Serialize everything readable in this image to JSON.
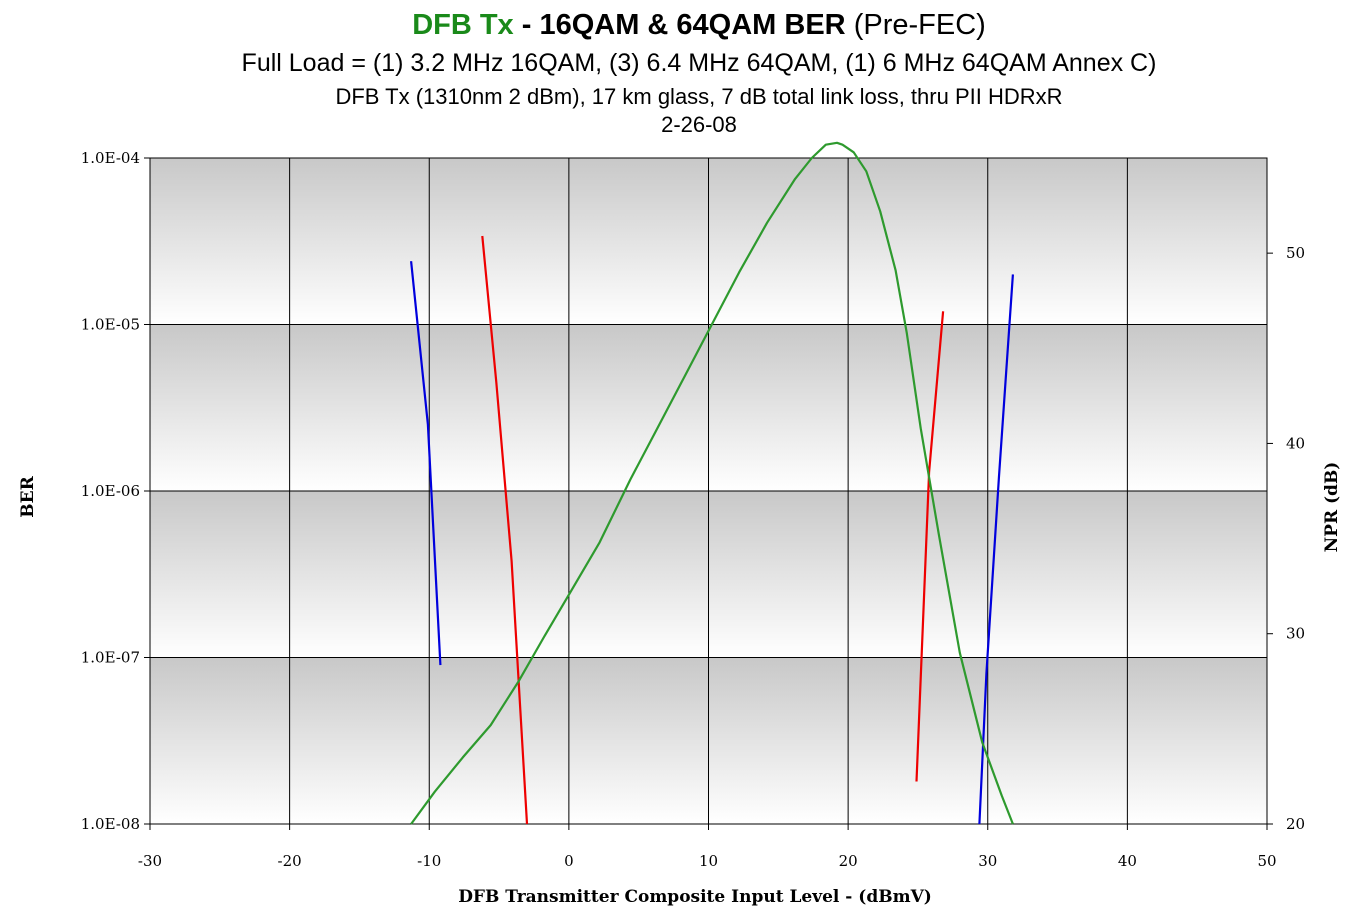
{
  "title": {
    "part_green": "DFB Tx",
    "part_bold": " - 16QAM & 64QAM BER",
    "part_plain": " (Pre-FEC)",
    "line2": "Full Load = (1) 3.2 MHz 16QAM, (3) 6.4 MHz 64QAM, (1) 6 MHz 64QAM Annex C)",
    "line3": "DFB Tx (1310nm 2 dBm), 17 km glass, 7 dB total link loss, thru PII HDRxR",
    "line4": "2-26-08"
  },
  "chart_data": {
    "type": "line",
    "xlabel": "DFB Transmitter Composite Input Level - (dBmV)",
    "ylabel": "BER",
    "y2label": "NPR (dB)",
    "xlim": [
      -30,
      50
    ],
    "ylim_log10": [
      -8,
      -4
    ],
    "y2lim": [
      20,
      55
    ],
    "x_ticks": [
      "-30",
      "-20",
      "-10",
      "0",
      "10",
      "20",
      "30",
      "40",
      "50"
    ],
    "y_ticks": [
      "1.0E-04",
      "1.0E-05",
      "1.0E-06",
      "1.0E-07",
      "1.0E-08"
    ],
    "y2_ticks": [
      "50",
      "40",
      "30",
      "20"
    ],
    "grid": true,
    "colors": {
      "blue": "#0000dd",
      "red": "#ee0000",
      "green": "#2e9a2e",
      "plot_bg_top": "#c8c8c8",
      "plot_bg_mid": "#ffffff",
      "title_green": "#1a8a1a"
    },
    "series": [
      {
        "color": "blue",
        "axis": "y",
        "x": [
          -11.3,
          -10.1,
          -9.2
        ],
        "y": [
          2.4e-05,
          2.5e-06,
          9e-08
        ]
      },
      {
        "color": "red",
        "axis": "y",
        "x": [
          -6.2,
          -5.2,
          -4.1,
          -3.0
        ],
        "y": [
          3.4e-05,
          4.5e-06,
          3.8e-07,
          1e-08
        ]
      },
      {
        "color": "red",
        "axis": "y",
        "x": [
          24.9,
          25.8,
          26.8
        ],
        "y": [
          1.8e-08,
          1.3e-06,
          1.2e-05
        ]
      },
      {
        "color": "blue",
        "axis": "y",
        "x": [
          29.4,
          29.9,
          30.8,
          31.8
        ],
        "y": [
          1e-08,
          8e-08,
          1.2e-06,
          2e-05
        ]
      },
      {
        "color": "green",
        "axis": "y2",
        "x": [
          -11.3,
          -9.6,
          -7.6,
          -5.6,
          -3.6,
          -1.8,
          0.2,
          2.2,
          4.4,
          6.2,
          8.2,
          10.2,
          12.2,
          14.2,
          16.2,
          17.4,
          18.4,
          19.2,
          19.6,
          20.4,
          21.3,
          22.3,
          23.4,
          24.2,
          25.2,
          26.5,
          28.0,
          29.6,
          31.0,
          31.8
        ],
        "y": [
          20.0,
          21.7,
          23.5,
          25.2,
          27.5,
          29.8,
          32.3,
          34.8,
          38.1,
          40.6,
          43.4,
          46.2,
          49.0,
          51.6,
          53.9,
          55.0,
          55.7,
          55.8,
          55.7,
          55.3,
          54.3,
          52.2,
          49.1,
          45.8,
          40.8,
          35.2,
          29.0,
          24.3,
          21.5,
          20.0
        ]
      }
    ]
  }
}
